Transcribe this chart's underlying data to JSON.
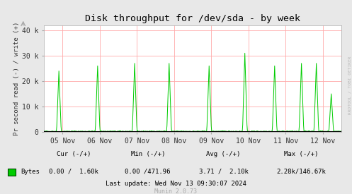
{
  "title": "Disk throughput for /dev/sda - by week",
  "ylabel": "Pr second read (-) / write (+)",
  "xlabel_ticks": [
    "05 Nov",
    "06 Nov",
    "07 Nov",
    "08 Nov",
    "09 Nov",
    "10 Nov",
    "11 Nov",
    "12 Nov"
  ],
  "yticks": [
    0,
    10000,
    20000,
    30000,
    40000
  ],
  "ytick_labels": [
    "0",
    "10 k",
    "20 k",
    "30 k",
    "40 k"
  ],
  "ylim": [
    0,
    42000
  ],
  "background_color": "#e8e8e8",
  "plot_bg_color": "#ffffff",
  "grid_color": "#ffaaaa",
  "line_color": "#00cc00",
  "title_color": "#000000",
  "watermark": "RRDTOOL / TOBI OETIKER",
  "legend_label": "Bytes",
  "legend_color": "#00cc00",
  "legend_edge_color": "#004400",
  "footer_cur": "Cur (-/+)",
  "footer_min": "Min (-/+)",
  "footer_avg": "Avg (-/+)",
  "footer_max": "Max (-/+)",
  "footer_cur_val": "0.00 /  1.60k",
  "footer_min_val": "0.00 /471.96",
  "footer_avg_val": "3.71 /  2.10k",
  "footer_max_val": "2.28k/146.67k",
  "footer_last_update": "Last update: Wed Nov 13 09:30:07 2024",
  "footer_munin": "Munin 2.0.73",
  "spike_positions": [
    0.05,
    0.18,
    0.305,
    0.42,
    0.555,
    0.675,
    0.775,
    0.865,
    0.915,
    0.965
  ],
  "spike_heights": [
    24000,
    26000,
    27000,
    27000,
    26000,
    31000,
    26000,
    27000,
    27000,
    15000
  ],
  "baseline_mean": 1200,
  "baseline_std": 250,
  "n_points": 700
}
